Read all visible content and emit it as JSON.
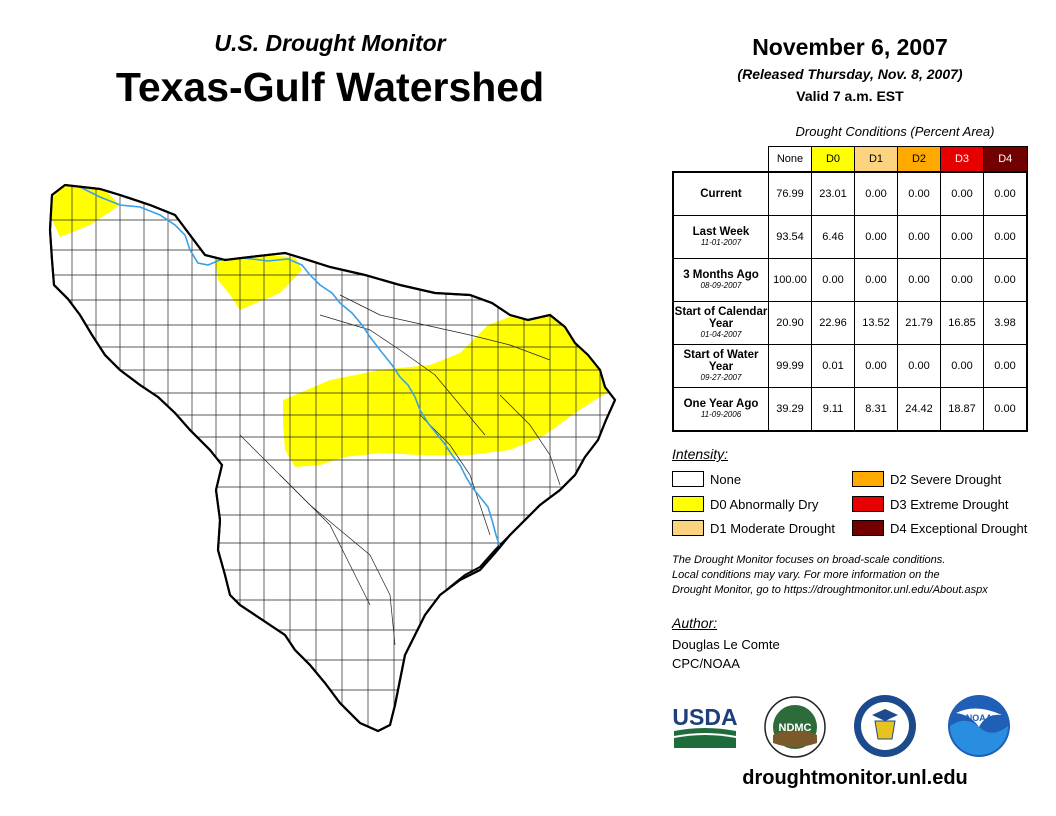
{
  "header": {
    "subtitle": "U.S. Drought Monitor",
    "title": "Texas-Gulf Watershed",
    "date": "November 6, 2007",
    "released": "(Released Thursday, Nov. 8, 2007)",
    "valid": "Valid 7 a.m. EST"
  },
  "table": {
    "caption": "Drought Conditions (Percent Area)",
    "columns": [
      {
        "label": "None",
        "color": "#ffffff"
      },
      {
        "label": "D0",
        "color": "#ffff00"
      },
      {
        "label": "D1",
        "color": "#fcd37f"
      },
      {
        "label": "D2",
        "color": "#ffaa00"
      },
      {
        "label": "D3",
        "color": "#e60000"
      },
      {
        "label": "D4",
        "color": "#730000"
      }
    ],
    "rows": [
      {
        "label": "Current",
        "date": "",
        "values": [
          "76.99",
          "23.01",
          "0.00",
          "0.00",
          "0.00",
          "0.00"
        ]
      },
      {
        "label": "Last Week",
        "date": "11-01-2007",
        "values": [
          "93.54",
          "6.46",
          "0.00",
          "0.00",
          "0.00",
          "0.00"
        ]
      },
      {
        "label": "3 Months Ago",
        "date": "08-09-2007",
        "values": [
          "100.00",
          "0.00",
          "0.00",
          "0.00",
          "0.00",
          "0.00"
        ]
      },
      {
        "label": "Start of Calendar Year",
        "date": "01-04-2007",
        "values": [
          "20.90",
          "22.96",
          "13.52",
          "21.79",
          "16.85",
          "3.98"
        ]
      },
      {
        "label": "Start of Water Year",
        "date": "09-27-2007",
        "values": [
          "99.99",
          "0.01",
          "0.00",
          "0.00",
          "0.00",
          "0.00"
        ]
      },
      {
        "label": "One Year Ago",
        "date": "11-09-2006",
        "values": [
          "39.29",
          "9.11",
          "8.31",
          "24.42",
          "18.87",
          "0.00"
        ]
      }
    ]
  },
  "legend": {
    "title": "Intensity:",
    "items": [
      {
        "label": "None",
        "color": "#ffffff"
      },
      {
        "label": "D0 Abnormally Dry",
        "color": "#ffff00"
      },
      {
        "label": "D1 Moderate Drought",
        "color": "#fcd37f"
      },
      {
        "label": "D2 Severe Drought",
        "color": "#ffaa00"
      },
      {
        "label": "D3 Extreme Drought",
        "color": "#e60000"
      },
      {
        "label": "D4 Exceptional Drought",
        "color": "#730000"
      }
    ]
  },
  "note": {
    "line1": "The Drought Monitor focuses on broad-scale conditions.",
    "line2": "Local conditions may vary. For more information on the",
    "line3": "Drought Monitor, go to https://droughtmonitor.unl.edu/About.aspx"
  },
  "author": {
    "title": "Author:",
    "name": "Douglas Le Comte",
    "org": "CPC/NOAA"
  },
  "logos": {
    "usda": "USDA",
    "ndmc": "NDMC",
    "noaa": "NOAA"
  },
  "website": "droughtmonitor.unl.edu",
  "colors": {
    "drought_d0": "#ffff00",
    "river": "#3aa0e8"
  }
}
